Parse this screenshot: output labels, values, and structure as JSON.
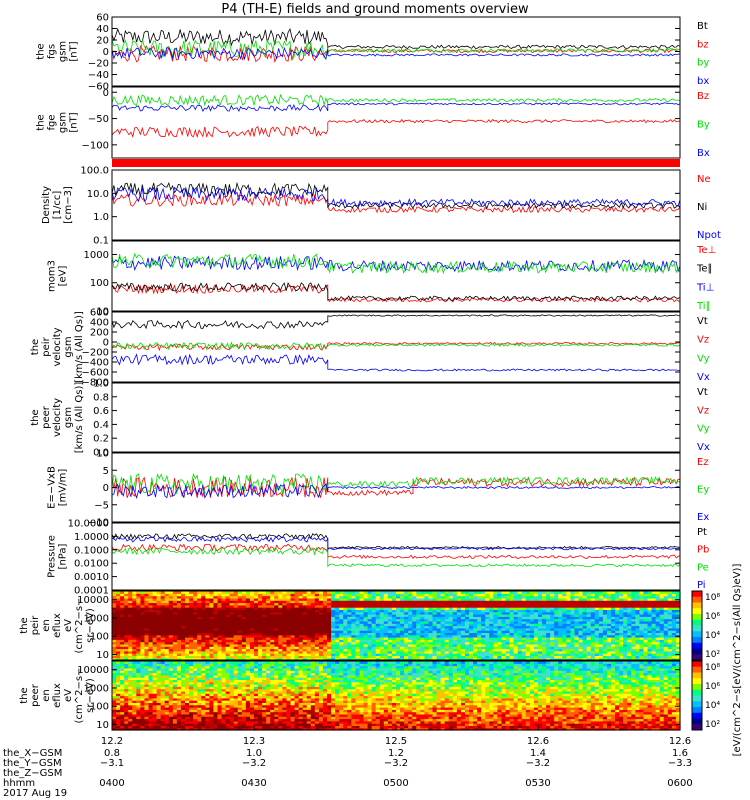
{
  "title": "P4 (TH-E) fields and ground moments overview",
  "colors": {
    "black": "#000000",
    "red": "#ff0000",
    "green": "#00e000",
    "blue": "#0000ff"
  },
  "chart_data": [
    {
      "type": "line",
      "panel": "fgs",
      "ylabel": [
        "the",
        "fgs",
        "gsm",
        "[nT]"
      ],
      "ylim": [
        -60,
        60
      ],
      "yticks": [
        {
          "v": 60,
          "t": "60"
        },
        {
          "v": 40,
          "t": "40"
        },
        {
          "v": 20,
          "t": "20"
        },
        {
          "v": 0,
          "t": "0"
        },
        {
          "v": -20,
          "t": "−20"
        },
        {
          "v": -40,
          "t": "−40"
        },
        {
          "v": -60,
          "t": "−60"
        }
      ],
      "series": [
        {
          "name": "Bt",
          "color": "black",
          "segments": [
            {
              "x": [
                0.0,
                0.38
              ],
              "level": 25,
              "noise": 14
            },
            {
              "x": [
                0.38,
                1.0
              ],
              "level": 8,
              "noise": 3
            }
          ]
        },
        {
          "name": "bz",
          "color": "red",
          "segments": [
            {
              "x": [
                0.0,
                0.38
              ],
              "level": -4,
              "noise": 14
            },
            {
              "x": [
                0.38,
                1.0
              ],
              "level": 1,
              "noise": 3
            }
          ]
        },
        {
          "name": "by",
          "color": "green",
          "segments": [
            {
              "x": [
                0.0,
                0.38
              ],
              "level": 5,
              "noise": 16
            },
            {
              "x": [
                0.38,
                1.0
              ],
              "level": 2,
              "noise": 3
            }
          ]
        },
        {
          "name": "bx",
          "color": "blue",
          "segments": [
            {
              "x": [
                0.0,
                0.38
              ],
              "level": -3,
              "noise": 10
            },
            {
              "x": [
                0.38,
                1.0
              ],
              "level": -6,
              "noise": 2
            }
          ]
        }
      ]
    },
    {
      "type": "line",
      "panel": "fge",
      "ylabel": [
        "the",
        "fge",
        "gsm",
        "[nT]"
      ],
      "ylim": [
        -125,
        10
      ],
      "yticks": [
        {
          "v": 0,
          "t": "0"
        },
        {
          "v": -50,
          "t": "−50"
        },
        {
          "v": -100,
          "t": "−100"
        }
      ],
      "series": [
        {
          "name": "Bz",
          "color": "red",
          "segments": [
            {
              "x": [
                0.0,
                0.38
              ],
              "level": -75,
              "noise": 10
            },
            {
              "x": [
                0.38,
                1.0
              ],
              "level": -55,
              "noise": 3
            }
          ]
        },
        {
          "name": "By",
          "color": "green",
          "segments": [
            {
              "x": [
                0.0,
                0.38
              ],
              "level": -15,
              "noise": 10
            },
            {
              "x": [
                0.38,
                1.0
              ],
              "level": -15,
              "noise": 3
            }
          ]
        },
        {
          "name": "Bx",
          "color": "blue",
          "segments": [
            {
              "x": [
                0.0,
                0.38
              ],
              "level": -30,
              "noise": 6
            },
            {
              "x": [
                0.38,
                1.0
              ],
              "level": -22,
              "noise": 2
            }
          ]
        }
      ]
    },
    {
      "type": "line",
      "panel": "density",
      "ylabel": [
        "Density",
        "[1/cc]",
        "[cm−3]"
      ],
      "ylim": [
        0.1,
        100
      ],
      "log": true,
      "yticks": [
        {
          "v": 100,
          "t": "100.0"
        },
        {
          "v": 10,
          "t": "10.0"
        },
        {
          "v": 1,
          "t": "1.0"
        },
        {
          "v": 0.1,
          "t": "0.1"
        }
      ],
      "series": [
        {
          "name": "Ne",
          "color": "red",
          "segments": [
            {
              "x": [
                0.0,
                0.38
              ],
              "level": 5,
              "noise": 0.25
            },
            {
              "x": [
                0.38,
                1.0
              ],
              "level": 2,
              "noise": 0.12
            }
          ]
        },
        {
          "name": "Ni",
          "color": "black",
          "segments": [
            {
              "x": [
                0.0,
                0.38
              ],
              "level": 14,
              "noise": 0.3
            },
            {
              "x": [
                0.38,
                1.0
              ],
              "level": 3,
              "noise": 0.12
            }
          ]
        },
        {
          "name": "Npot",
          "color": "blue",
          "segments": [
            {
              "x": [
                0.0,
                0.38
              ],
              "level": 9,
              "noise": 0.3
            },
            {
              "x": [
                0.38,
                1.0
              ],
              "level": 4,
              "noise": 0.15
            }
          ]
        }
      ]
    },
    {
      "type": "line",
      "panel": "temp",
      "ylabel": [
        "mom3",
        "[eV]"
      ],
      "ylim": [
        10,
        3000
      ],
      "log": true,
      "yticks": [
        {
          "v": 1000,
          "t": "1000"
        },
        {
          "v": 100,
          "t": "100"
        },
        {
          "v": 10,
          "t": "10"
        }
      ],
      "series": [
        {
          "name": "Te⊥",
          "color": "red",
          "segments": [
            {
              "x": [
                0.0,
                0.38
              ],
              "level": 60,
              "noise": 0.15
            },
            {
              "x": [
                0.38,
                1.0
              ],
              "level": 25,
              "noise": 0.08
            }
          ]
        },
        {
          "name": "Te∥",
          "color": "black",
          "segments": [
            {
              "x": [
                0.0,
                0.38
              ],
              "level": 70,
              "noise": 0.15
            },
            {
              "x": [
                0.38,
                1.0
              ],
              "level": 28,
              "noise": 0.08
            }
          ]
        },
        {
          "name": "Ti⊥",
          "color": "blue",
          "segments": [
            {
              "x": [
                0.0,
                0.38
              ],
              "level": 500,
              "noise": 0.25
            },
            {
              "x": [
                0.38,
                1.0
              ],
              "level": 400,
              "noise": 0.2
            }
          ]
        },
        {
          "name": "Ti∥",
          "color": "green",
          "segments": [
            {
              "x": [
                0.0,
                0.38
              ],
              "level": 600,
              "noise": 0.25
            },
            {
              "x": [
                0.38,
                1.0
              ],
              "level": 350,
              "noise": 0.2
            }
          ]
        }
      ]
    },
    {
      "type": "line",
      "panel": "peir_vel",
      "ylabel": [
        "the",
        "peir",
        "velocity",
        "gsm",
        "[km/s (All Qs)]"
      ],
      "ylim": [
        -800,
        600
      ],
      "yticks": [
        {
          "v": 600,
          "t": "600"
        },
        {
          "v": 400,
          "t": "400"
        },
        {
          "v": 200,
          "t": "200"
        },
        {
          "v": 0,
          "t": "0"
        },
        {
          "v": -200,
          "t": "−200"
        },
        {
          "v": -400,
          "t": "−400"
        },
        {
          "v": -600,
          "t": "−600"
        },
        {
          "v": -800,
          "t": "−800"
        }
      ],
      "series": [
        {
          "name": "Vt",
          "color": "black",
          "segments": [
            {
              "x": [
                0.0,
                0.38
              ],
              "level": 350,
              "noise": 80
            },
            {
              "x": [
                0.38,
                1.0
              ],
              "level": 530,
              "noise": 15
            }
          ]
        },
        {
          "name": "Vz",
          "color": "red",
          "segments": [
            {
              "x": [
                0.0,
                0.38
              ],
              "level": -100,
              "noise": 60
            },
            {
              "x": [
                0.38,
                1.0
              ],
              "level": -30,
              "noise": 20
            }
          ]
        },
        {
          "name": "Vy",
          "color": "green",
          "segments": [
            {
              "x": [
                0.0,
                0.38
              ],
              "level": -80,
              "noise": 70
            },
            {
              "x": [
                0.38,
                1.0
              ],
              "level": -60,
              "noise": 25
            }
          ]
        },
        {
          "name": "Vx",
          "color": "blue",
          "segments": [
            {
              "x": [
                0.0,
                0.38
              ],
              "level": -350,
              "noise": 100
            },
            {
              "x": [
                0.38,
                1.0
              ],
              "level": -560,
              "noise": 20
            }
          ]
        }
      ]
    },
    {
      "type": "line",
      "panel": "peer_vel",
      "ylabel": [
        "the",
        "peer",
        "velocity",
        "gsm",
        "[km/s (All Qs)]"
      ],
      "ylim": [
        0,
        1
      ],
      "yticks": [
        {
          "v": 1.0,
          "t": "1.0"
        },
        {
          "v": 0.8,
          "t": "0.8"
        },
        {
          "v": 0.6,
          "t": "0.6"
        },
        {
          "v": 0.4,
          "t": "0.4"
        },
        {
          "v": 0.2,
          "t": "0.2"
        },
        {
          "v": 0.0,
          "t": "0.0"
        }
      ],
      "series": [
        {
          "name": "Vt",
          "color": "black",
          "segments": []
        },
        {
          "name": "Vz",
          "color": "red",
          "segments": []
        },
        {
          "name": "Vy",
          "color": "green",
          "segments": []
        },
        {
          "name": "Vx",
          "color": "blue",
          "segments": []
        }
      ]
    },
    {
      "type": "line",
      "panel": "efield",
      "ylabel": [
        "E=−VxB",
        "[mV/m]"
      ],
      "ylim": [
        -10,
        10
      ],
      "yticks": [
        {
          "v": 10,
          "t": "10"
        },
        {
          "v": 5,
          "t": "5"
        },
        {
          "v": 0,
          "t": "0"
        },
        {
          "v": -5,
          "t": "−5"
        },
        {
          "v": -10,
          "t": "−10"
        }
      ],
      "series": [
        {
          "name": "Ez",
          "color": "red",
          "segments": [
            {
              "x": [
                0.0,
                0.38
              ],
              "level": 0,
              "noise": 3
            },
            {
              "x": [
                0.38,
                0.53
              ],
              "level": -1.5,
              "noise": 0.8
            },
            {
              "x": [
                0.53,
                1.0
              ],
              "level": 1.5,
              "noise": 1.2
            }
          ]
        },
        {
          "name": "Ey",
          "color": "green",
          "segments": [
            {
              "x": [
                0.0,
                0.38
              ],
              "level": 1,
              "noise": 3
            },
            {
              "x": [
                0.38,
                0.53
              ],
              "level": 1,
              "noise": 0.8
            },
            {
              "x": [
                0.53,
                1.0
              ],
              "level": 2,
              "noise": 1
            }
          ]
        },
        {
          "name": "Ex",
          "color": "blue",
          "segments": [
            {
              "x": [
                0.0,
                0.38
              ],
              "level": -1,
              "noise": 2
            },
            {
              "x": [
                0.38,
                1.0
              ],
              "level": 0,
              "noise": 0.3
            }
          ]
        }
      ]
    },
    {
      "type": "line",
      "panel": "pressure",
      "ylabel": [
        "Pressure",
        "[nPa]"
      ],
      "ylim": [
        0.0001,
        10
      ],
      "log": true,
      "yticks": [
        {
          "v": 10,
          "t": "10.0000"
        },
        {
          "v": 1,
          "t": "1.0000"
        },
        {
          "v": 0.1,
          "t": "0.1000"
        },
        {
          "v": 0.01,
          "t": "0.0100"
        },
        {
          "v": 0.001,
          "t": "0.0010"
        },
        {
          "v": 0.0001,
          "t": "0.0001"
        }
      ],
      "series": [
        {
          "name": "Pt",
          "color": "black",
          "segments": [
            {
              "x": [
                0.0,
                0.38
              ],
              "level": 1.0,
              "noise": 0.2
            },
            {
              "x": [
                0.38,
                1.0
              ],
              "level": 0.15,
              "noise": 0.08
            }
          ]
        },
        {
          "name": "Pb",
          "color": "red",
          "segments": [
            {
              "x": [
                0.0,
                0.38
              ],
              "level": 0.15,
              "noise": 0.25
            },
            {
              "x": [
                0.38,
                1.0
              ],
              "level": 0.03,
              "noise": 0.12
            }
          ]
        },
        {
          "name": "Pe",
          "color": "green",
          "segments": [
            {
              "x": [
                0.0,
                0.38
              ],
              "level": 0.08,
              "noise": 0.25
            },
            {
              "x": [
                0.38,
                1.0
              ],
              "level": 0.007,
              "noise": 0.1
            }
          ]
        },
        {
          "name": "Pi",
          "color": "blue",
          "segments": [
            {
              "x": [
                0.0,
                0.38
              ],
              "level": 0.6,
              "noise": 0.2
            },
            {
              "x": [
                0.38,
                1.0
              ],
              "level": 0.12,
              "noise": 0.08
            }
          ]
        }
      ]
    },
    {
      "type": "heatmap",
      "panel": "peir_spec",
      "ylabel": [
        "the",
        "peir",
        "en",
        "eflux",
        "eV",
        "(cm^2−s−",
        "sr−eV)"
      ],
      "ylim": [
        5,
        30000
      ],
      "log": true,
      "yticks": [
        {
          "v": 10000,
          "t": "10000"
        },
        {
          "v": 1000,
          "t": "1000"
        },
        {
          "v": 100,
          "t": "100"
        },
        {
          "v": 10,
          "t": "10"
        }
      ]
    },
    {
      "type": "heatmap",
      "panel": "peer_spec",
      "ylabel": [
        "the",
        "peer",
        "en",
        "eflux",
        "eV",
        "(cm^2−s−",
        "sr−eV)"
      ],
      "ylim": [
        5,
        30000
      ],
      "log": true,
      "yticks": [
        {
          "v": 10000,
          "t": "10000"
        },
        {
          "v": 1000,
          "t": "1000"
        },
        {
          "v": 100,
          "t": "100"
        },
        {
          "v": 10,
          "t": "10"
        }
      ]
    }
  ],
  "colorbars": [
    {
      "ticks": [
        "10⁸",
        "10⁶",
        "10⁴",
        "10²"
      ]
    },
    {
      "ticks": [
        "10⁸",
        "10⁶",
        "10⁴",
        "10²"
      ]
    }
  ],
  "colorbar_label": "[eV/(cm^2−s[eV/(cm^2−s(All Qs)eV)]",
  "xaxis": {
    "ticks": [
      {
        "f": 0.0,
        "t": "12.2"
      },
      {
        "f": 0.25,
        "t": "12.3"
      },
      {
        "f": 0.5,
        "t": "12.5"
      },
      {
        "f": 0.75,
        "t": "12.6"
      },
      {
        "f": 1.0,
        "t": "12.6"
      }
    ],
    "rows": [
      {
        "label": "the_X−GSM",
        "values": [
          "0.8",
          "1.0",
          "1.2",
          "1.4",
          "1.6"
        ]
      },
      {
        "label": "the_Y−GSM",
        "values": [
          "−3.1",
          "−3.2",
          "−3.2",
          "−3.2",
          "−3.3"
        ]
      },
      {
        "label": "the_Z−GSM",
        "values": [
          "",
          "",
          "",
          "",
          ""
        ]
      },
      {
        "label": "hhmm",
        "values": [
          "0400",
          "0430",
          "0500",
          "0530",
          "0600"
        ]
      }
    ],
    "date": "2017 Aug 19"
  }
}
